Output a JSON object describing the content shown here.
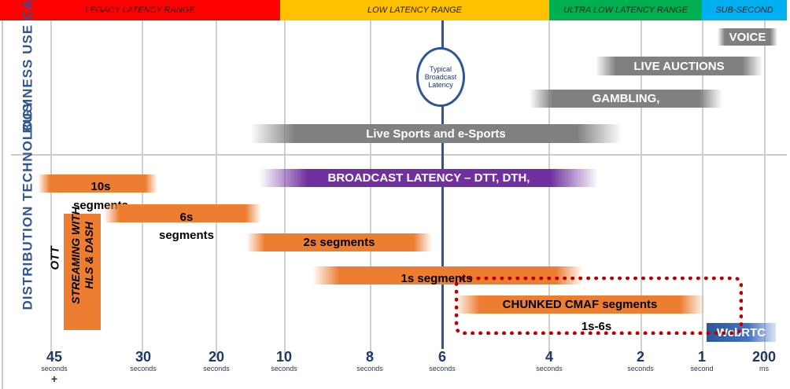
{
  "header_bands": [
    {
      "label": "LEGACY LATENCY RANGE",
      "color": "#ff0000"
    },
    {
      "label": "LOW LATENCY RANGE",
      "color": "#ffc000"
    },
    {
      "label": "ULTRA LOW LATENCY RANGE",
      "color": "#00b050"
    },
    {
      "label": "SUB-SECOND",
      "color": "#00b0f0"
    }
  ],
  "sections": {
    "business": "BUSINESS USE CASES",
    "distribution": "DISTRIBUTION TECHNOLOGY"
  },
  "typical_marker": "Typical Broadcast Latency",
  "business_bars": [
    "VOICE",
    "LIVE AUCTIONS",
    "GAMBLING,",
    "Live Sports and e-Sports"
  ],
  "distribution": {
    "broadcast": "BROADCAST LATENCY – DTT, DTH,",
    "seg10": "10s",
    "seg10_sub": "segments",
    "seg6": "6s",
    "seg6_sub": "segments",
    "seg2": "2s segments",
    "seg1": "1s segments",
    "cmaf": "CHUNKED CMAF segments",
    "cmaf_range": "1s-6s",
    "webrtc": "WebRTC",
    "ott": "OTT",
    "ott_streaming": "STREAMING WITH HLS & DASH"
  },
  "axis": [
    {
      "n": "45",
      "u": "seconds",
      "extra": "+"
    },
    {
      "n": "30",
      "u": "seconds"
    },
    {
      "n": "20",
      "u": "seconds"
    },
    {
      "n": "10",
      "u": "seconds"
    },
    {
      "n": "8",
      "u": "seconds"
    },
    {
      "n": "6",
      "u": "seconds"
    },
    {
      "n": "4",
      "u": "seconds"
    },
    {
      "n": "2",
      "u": "seconds"
    },
    {
      "n": "1",
      "u": "second"
    },
    {
      "n": "200",
      "u": "ms"
    }
  ]
}
